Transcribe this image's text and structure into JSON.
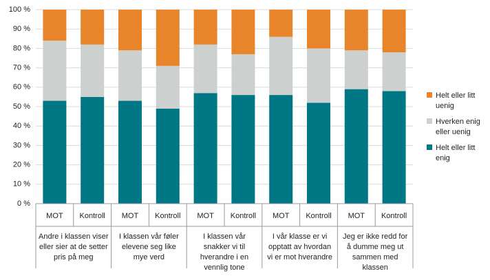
{
  "chart_data": {
    "type": "stacked_bar",
    "categories": [
      "MOT",
      "Kontroll",
      "MOT",
      "Kontroll",
      "MOT",
      "Kontroll",
      "MOT",
      "Kontroll",
      "MOT",
      "Kontroll"
    ],
    "groups": [
      "Andre i klassen viser eller sier at de setter pris på meg",
      "I klassen vår føler elevene seg like mye verd",
      "I klassen vår snakker vi til hverandre i en vennlig tone",
      "I vår klasse er vi opptatt av hvordan vi er mot hverandre",
      "Jeg er ikke redd for å dumme meg ut sammen med klassen"
    ],
    "series": [
      {
        "name": "Helt eller litt enig",
        "color": "#007785",
        "values": [
          53,
          55,
          53,
          49,
          57,
          56,
          56,
          52,
          59,
          58
        ]
      },
      {
        "name": "Hverken enig eller uenig",
        "color": "#ccd1cf",
        "values": [
          31,
          27,
          26,
          22,
          25,
          21,
          30,
          28,
          20,
          20
        ]
      },
      {
        "name": "Helt eller litt uenig",
        "color": "#e8852a",
        "values": [
          16,
          18,
          21,
          29,
          18,
          23,
          14,
          20,
          21,
          22
        ]
      }
    ],
    "ylim": [
      0,
      100
    ],
    "yticks": [
      {
        "value": 0,
        "label": "0 %"
      },
      {
        "value": 10,
        "label": "10 %"
      },
      {
        "value": 20,
        "label": "20 %"
      },
      {
        "value": 30,
        "label": "30 %"
      },
      {
        "value": 40,
        "label": "40 %"
      },
      {
        "value": 50,
        "label": "50 %"
      },
      {
        "value": 60,
        "label": "60 %"
      },
      {
        "value": 70,
        "label": "70 %"
      },
      {
        "value": 80,
        "label": "80 %"
      },
      {
        "value": 90,
        "label": "90 %"
      },
      {
        "value": 100,
        "label": "100 %"
      }
    ],
    "grid": true,
    "legend": "right"
  }
}
